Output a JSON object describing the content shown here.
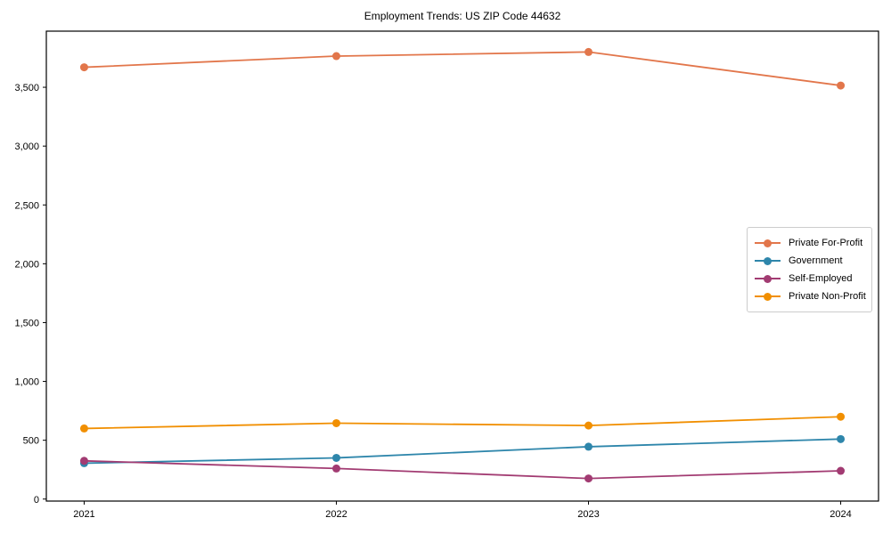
{
  "chart_data": {
    "type": "line",
    "title": "Employment Trends: US ZIP Code 44632",
    "x": [
      2021,
      2022,
      2023,
      2024
    ],
    "xtick_labels": [
      "2021",
      "2022",
      "2023",
      "2024"
    ],
    "series": [
      {
        "name": "Private For-Profit",
        "color": "#E2764B",
        "values": [
          3670,
          3765,
          3800,
          3515
        ]
      },
      {
        "name": "Government",
        "color": "#2E86AB",
        "values": [
          305,
          350,
          445,
          510
        ]
      },
      {
        "name": "Self-Employed",
        "color": "#A23B72",
        "values": [
          325,
          260,
          175,
          240
        ]
      },
      {
        "name": "Private Non-Profit",
        "color": "#F18F01",
        "values": [
          600,
          645,
          625,
          700
        ]
      }
    ],
    "xlabel": "",
    "ylabel": "",
    "xlim": [
      2020.85,
      2024.15
    ],
    "ylim": [
      -17,
      3977
    ],
    "yticks": [
      0,
      500,
      1000,
      1500,
      2000,
      2500,
      3000,
      3500
    ],
    "ytick_labels": [
      "0",
      "500",
      "1,000",
      "1,500",
      "2,000",
      "2,500",
      "3,000",
      "3,500"
    ],
    "grid": false,
    "legend_position": "center-right",
    "marker": "circle",
    "axis_color": "#000000"
  }
}
